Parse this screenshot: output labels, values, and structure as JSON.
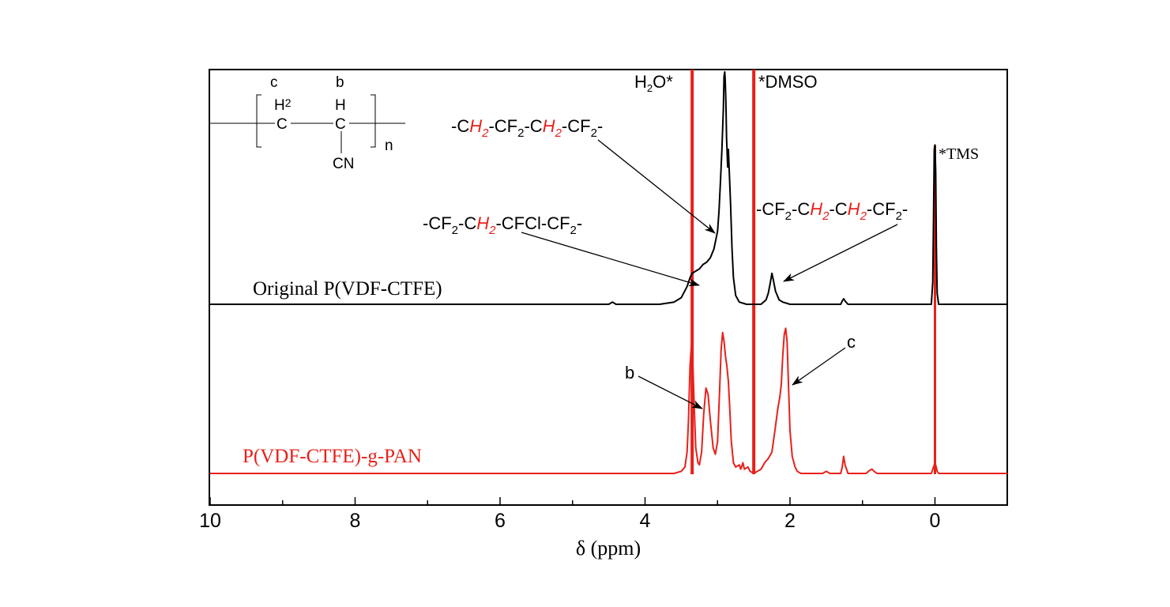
{
  "chart_data": {
    "type": "line",
    "title": "",
    "xlabel": "δ (ppm)",
    "ylabel": "",
    "xlim": [
      10,
      -1
    ],
    "x_reversed": true,
    "x_ticks": [
      10,
      8,
      6,
      4,
      2,
      0
    ],
    "x_tick_labels": [
      "10",
      "8",
      "6",
      "4",
      "2",
      "0"
    ],
    "grid": false,
    "colors": {
      "black_series": "#000000",
      "red_series": "#e8201a",
      "axis": "#000000"
    },
    "series": [
      {
        "name": "Original P(VDF-CTFE)",
        "color": "#000000",
        "points": [
          [
            10.0,
            0.0
          ],
          [
            4.5,
            0.0
          ],
          [
            4.45,
            0.01
          ],
          [
            4.4,
            0.0
          ],
          [
            3.8,
            0.0
          ],
          [
            3.6,
            0.01
          ],
          [
            3.5,
            0.03
          ],
          [
            3.42,
            0.08
          ],
          [
            3.38,
            0.12
          ],
          [
            3.35,
            0.14
          ],
          [
            3.3,
            0.15
          ],
          [
            3.25,
            0.16
          ],
          [
            3.2,
            0.18
          ],
          [
            3.15,
            0.19
          ],
          [
            3.1,
            0.21
          ],
          [
            3.05,
            0.25
          ],
          [
            3.0,
            0.33
          ],
          [
            2.98,
            0.42
          ],
          [
            2.96,
            0.55
          ],
          [
            2.94,
            0.7
          ],
          [
            2.92,
            0.88
          ],
          [
            2.91,
            1.03
          ],
          [
            2.9,
            1.05
          ],
          [
            2.895,
            1.02
          ],
          [
            2.885,
            0.92
          ],
          [
            2.875,
            0.75
          ],
          [
            2.86,
            0.62
          ],
          [
            2.85,
            0.7
          ],
          [
            2.84,
            0.62
          ],
          [
            2.82,
            0.45
          ],
          [
            2.8,
            0.25
          ],
          [
            2.78,
            0.12
          ],
          [
            2.75,
            0.04
          ],
          [
            2.7,
            0.01
          ],
          [
            2.6,
            0.0
          ],
          [
            2.5,
            0.0
          ],
          [
            2.4,
            0.0
          ],
          [
            2.33,
            0.02
          ],
          [
            2.3,
            0.05
          ],
          [
            2.27,
            0.1
          ],
          [
            2.25,
            0.14
          ],
          [
            2.23,
            0.11
          ],
          [
            2.2,
            0.06
          ],
          [
            2.15,
            0.02
          ],
          [
            2.1,
            0.01
          ],
          [
            2.0,
            0.0
          ],
          [
            1.5,
            0.0
          ],
          [
            1.3,
            0.0
          ],
          [
            1.28,
            0.015
          ],
          [
            1.26,
            0.025
          ],
          [
            1.24,
            0.015
          ],
          [
            1.2,
            0.0
          ],
          [
            0.05,
            0.0
          ],
          [
            0.03,
            0.1
          ],
          [
            0.02,
            0.4
          ],
          [
            0.01,
            0.7
          ],
          [
            0.0,
            0.72
          ],
          [
            -0.01,
            0.6
          ],
          [
            -0.02,
            0.25
          ],
          [
            -0.03,
            0.05
          ],
          [
            -0.05,
            0.0
          ],
          [
            -1.0,
            0.0
          ]
        ]
      },
      {
        "name": "P(VDF-CTFE)-g-PAN",
        "color": "#e8201a",
        "points": [
          [
            10.0,
            0.0
          ],
          [
            3.6,
            0.0
          ],
          [
            3.5,
            0.01
          ],
          [
            3.45,
            0.03
          ],
          [
            3.42,
            0.1
          ],
          [
            3.4,
            0.25
          ],
          [
            3.38,
            0.5
          ],
          [
            3.36,
            0.6
          ],
          [
            3.34,
            0.5
          ],
          [
            3.32,
            0.3
          ],
          [
            3.3,
            0.12
          ],
          [
            3.27,
            0.05
          ],
          [
            3.25,
            0.04
          ],
          [
            3.22,
            0.1
          ],
          [
            3.19,
            0.28
          ],
          [
            3.16,
            0.4
          ],
          [
            3.13,
            0.37
          ],
          [
            3.1,
            0.25
          ],
          [
            3.06,
            0.12
          ],
          [
            3.03,
            0.09
          ],
          [
            3.0,
            0.15
          ],
          [
            2.97,
            0.4
          ],
          [
            2.95,
            0.58
          ],
          [
            2.93,
            0.66
          ],
          [
            2.91,
            0.62
          ],
          [
            2.89,
            0.55
          ],
          [
            2.87,
            0.5
          ],
          [
            2.85,
            0.43
          ],
          [
            2.83,
            0.3
          ],
          [
            2.81,
            0.15
          ],
          [
            2.78,
            0.05
          ],
          [
            2.75,
            0.03
          ],
          [
            2.7,
            0.04
          ],
          [
            2.68,
            0.02
          ],
          [
            2.65,
            0.05
          ],
          [
            2.63,
            0.02
          ],
          [
            2.58,
            0.03
          ],
          [
            2.55,
            0.01
          ],
          [
            2.5,
            0.0
          ],
          [
            2.45,
            0.01
          ],
          [
            2.4,
            0.02
          ],
          [
            2.35,
            0.05
          ],
          [
            2.3,
            0.07
          ],
          [
            2.25,
            0.1
          ],
          [
            2.2,
            0.22
          ],
          [
            2.17,
            0.3
          ],
          [
            2.14,
            0.36
          ],
          [
            2.12,
            0.42
          ],
          [
            2.1,
            0.55
          ],
          [
            2.08,
            0.65
          ],
          [
            2.06,
            0.68
          ],
          [
            2.04,
            0.62
          ],
          [
            2.02,
            0.4
          ],
          [
            2.0,
            0.2
          ],
          [
            1.97,
            0.08
          ],
          [
            1.93,
            0.03
          ],
          [
            1.9,
            0.01
          ],
          [
            1.85,
            0.0
          ],
          [
            1.55,
            0.0
          ],
          [
            1.5,
            0.01
          ],
          [
            1.45,
            0.0
          ],
          [
            1.3,
            0.0
          ],
          [
            1.28,
            0.03
          ],
          [
            1.26,
            0.08
          ],
          [
            1.24,
            0.04
          ],
          [
            1.2,
            0.0
          ],
          [
            0.95,
            0.0
          ],
          [
            0.9,
            0.015
          ],
          [
            0.87,
            0.02
          ],
          [
            0.84,
            0.01
          ],
          [
            0.8,
            0.0
          ],
          [
            0.05,
            0.0
          ],
          [
            0.03,
            0.02
          ],
          [
            0.01,
            0.04
          ],
          [
            0.0,
            0.05
          ],
          [
            -0.01,
            0.04
          ],
          [
            -0.03,
            0.01
          ],
          [
            -0.05,
            0.0
          ],
          [
            -1.0,
            0.0
          ]
        ]
      }
    ],
    "solvent_lines": [
      {
        "x": 3.35,
        "label": "H",
        "sub": "2",
        "label2": "O*"
      },
      {
        "x": 2.5,
        "label": "*DMSO"
      },
      {
        "x": 0.0,
        "label": "*TMS"
      }
    ],
    "series_labels": {
      "black": "Original P(VDF-CTFE)",
      "red": "P(VDF-CTFE)-g-PAN"
    },
    "annotations": {
      "peak1": {
        "p1": "-C",
        "h1": "H",
        "s1": "2",
        "p2": "-CF",
        "s2": "2",
        "p3": "-C",
        "h2": "H",
        "s3": "2",
        "p4": "-CF",
        "s4": "2",
        "p5": "-"
      },
      "peak2": {
        "p1": "-CF",
        "s1": "2",
        "p2": "-C",
        "h1": "H",
        "s2": "2",
        "p3": "-CFCl-CF",
        "s3": "2",
        "p4": "-"
      },
      "peak3": {
        "p1": "-CF",
        "s1": "2",
        "p2": "-C",
        "h1": "H",
        "s2": "2",
        "p3": "-C",
        "h2": "H",
        "s3": "2",
        "p4": "-CF",
        "s4": "2",
        "p5": "-"
      },
      "peak_b": "b",
      "peak_c": "c"
    },
    "structure": {
      "label_c": "c",
      "label_b": "b",
      "h2": "H",
      "h2_sub": "2",
      "c1": "C",
      "h": "H",
      "c2": "C",
      "cn": "CN",
      "n": "n"
    }
  }
}
